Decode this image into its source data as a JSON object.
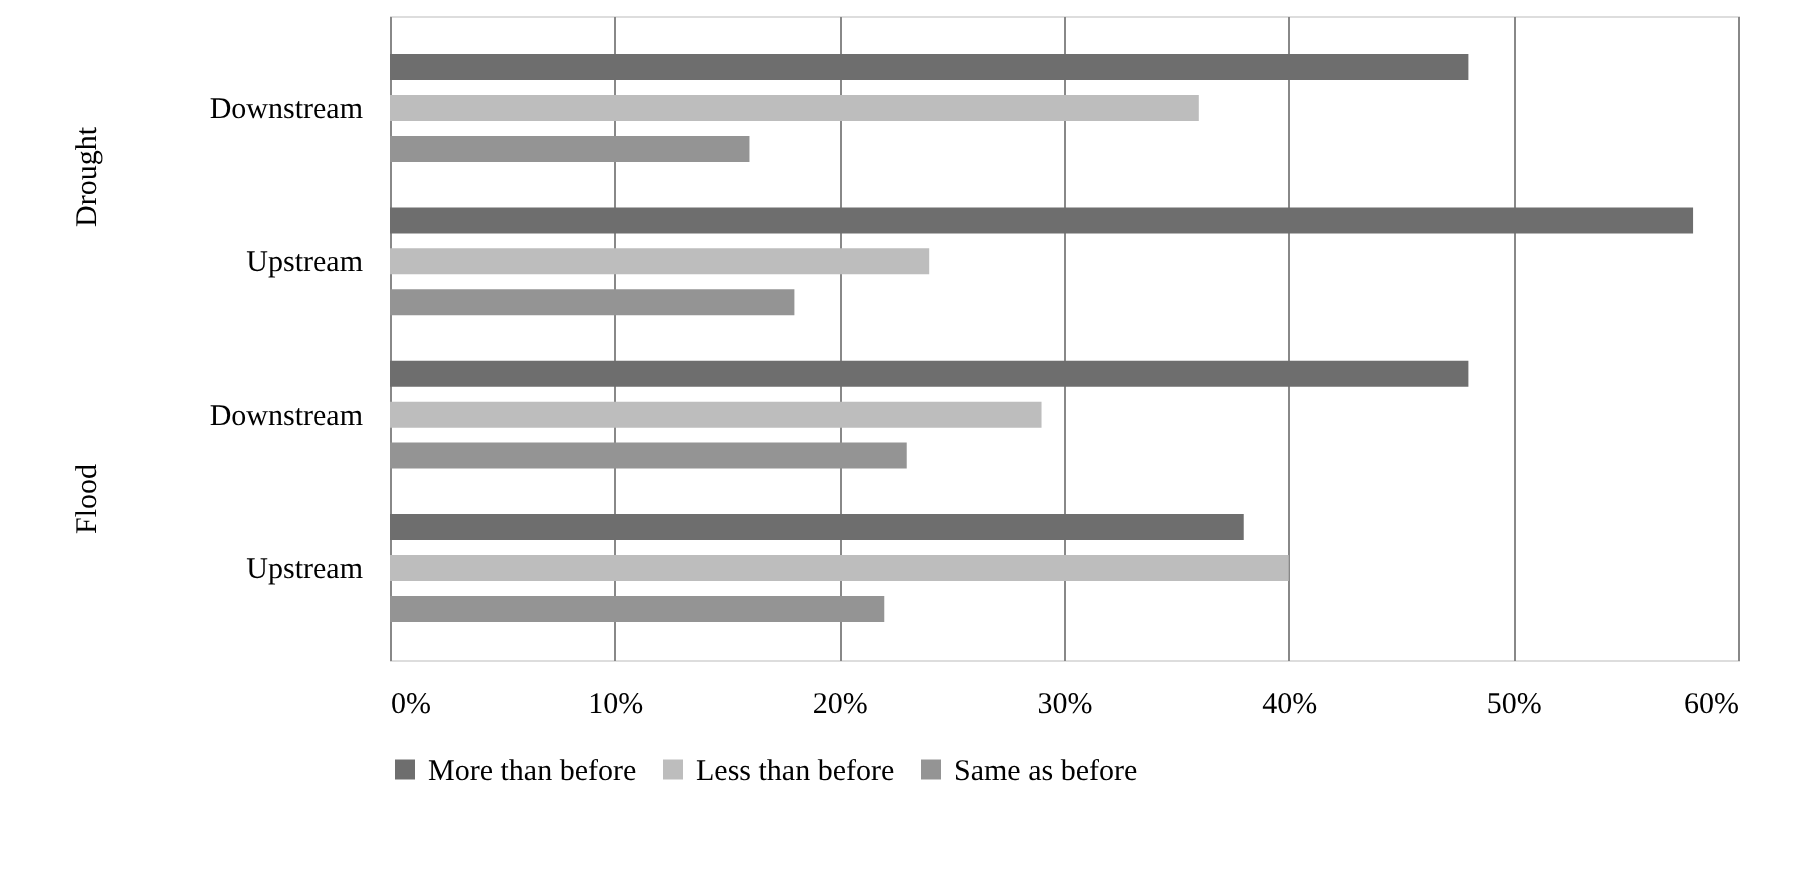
{
  "chart_data": {
    "type": "bar",
    "orientation": "horizontal",
    "categories": [
      "Downstream",
      "Upstream",
      "Downstream",
      "Upstream"
    ],
    "annotations": [
      "Drought",
      "Flood"
    ],
    "series": [
      {
        "name": "More than before",
        "color": "#6e6e6e",
        "values": [
          48,
          58,
          48,
          38
        ]
      },
      {
        "name": "Less than before",
        "color": "#bdbdbd",
        "values": [
          36,
          24,
          29,
          40
        ]
      },
      {
        "name": "Same as before",
        "color": "#949494",
        "values": [
          16,
          18,
          23,
          22
        ]
      }
    ],
    "xlim": [
      0,
      60
    ],
    "xticks": [
      {
        "value": 0,
        "label": "0%"
      },
      {
        "value": 10,
        "label": "10%"
      },
      {
        "value": 20,
        "label": "20%"
      },
      {
        "value": 30,
        "label": "30%"
      },
      {
        "value": 40,
        "label": "40%"
      },
      {
        "value": 50,
        "label": "50%"
      },
      {
        "value": 60,
        "label": "60%"
      }
    ],
    "grid": "x",
    "legend": "bottom"
  }
}
